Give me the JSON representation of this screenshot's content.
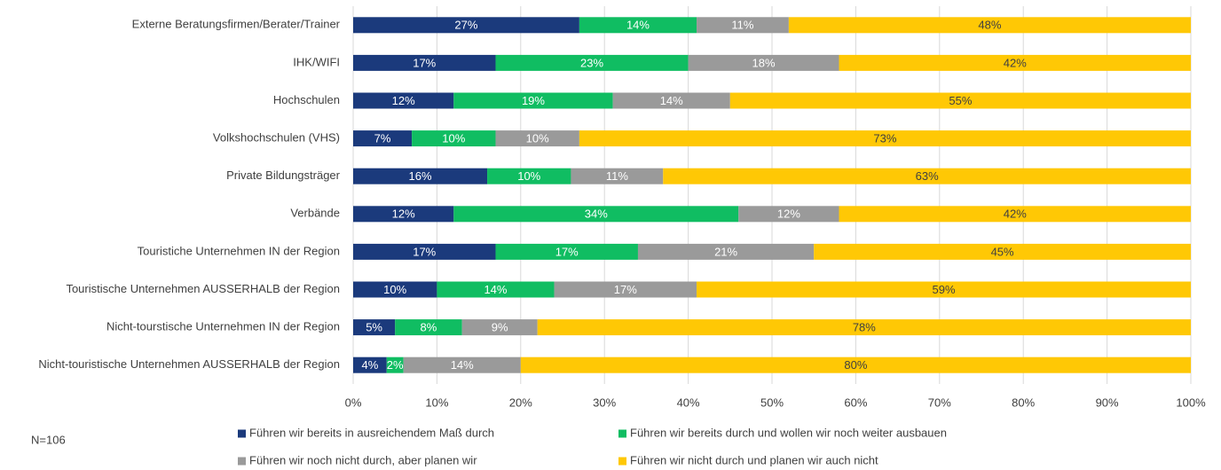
{
  "chart_data": {
    "type": "stacked-bar-horizontal",
    "categories": [
      "Externe Beratungsfirmen/Berater/Trainer",
      "IHK/WIFI",
      "Hochschulen",
      "Volkshochschulen (VHS)",
      "Private Bildungsträger",
      "Verbände",
      "Touristiche Unternehmen IN der Region",
      "Touristische Unternehmen AUSSERHALB der Region",
      "Nicht-tourstische Unternehmen IN der Region",
      "Nicht-touristische Unternehmen AUSSERHALB der Region"
    ],
    "series": [
      {
        "name": "Führen wir bereits in ausreichendem Maß durch",
        "color": "#1b3a7c",
        "label_color": "#ffffff",
        "values": [
          27,
          17,
          12,
          7,
          16,
          12,
          17,
          10,
          5,
          4
        ],
        "value_labels": [
          "27%",
          "17%",
          "12%",
          "7%",
          "16%",
          "12%",
          "17%",
          "10%",
          "5%",
          "4%"
        ]
      },
      {
        "name": "Führen wir bereits durch und wollen wir noch weiter ausbauen",
        "color": "#10bd62",
        "label_color": "#ffffff",
        "values": [
          14,
          23,
          19,
          10,
          10,
          34,
          17,
          14,
          8,
          2
        ],
        "value_labels": [
          "14%",
          "23%",
          "19%",
          "10%",
          "10%",
          "34%",
          "17%",
          "14%",
          "8%",
          "2%"
        ]
      },
      {
        "name": "Führen wir noch nicht durch, aber planen wir",
        "color": "#9a9a9a",
        "label_color": "#ffffff",
        "values": [
          11,
          18,
          14,
          10,
          11,
          12,
          21,
          17,
          9,
          14
        ],
        "value_labels": [
          "11%",
          "18%",
          "14%",
          "10%",
          "11%",
          "12%",
          "21%",
          "17%",
          "9%",
          "14%"
        ]
      },
      {
        "name": "Führen wir nicht durch und planen wir auch nicht",
        "color": "#ffc805",
        "label_color": "#404040",
        "values": [
          48,
          42,
          55,
          73,
          63,
          42,
          45,
          59,
          78,
          80
        ],
        "value_labels": [
          "48%",
          "42%",
          "55%",
          "73%",
          "63%",
          "42%",
          "45%",
          "59%",
          "78%",
          "80%"
        ]
      }
    ],
    "xlim": [
      0,
      100
    ],
    "xticks": [
      {
        "value": 0,
        "label": "0%"
      },
      {
        "value": 10,
        "label": "10%"
      },
      {
        "value": 20,
        "label": "20%"
      },
      {
        "value": 30,
        "label": "30%"
      },
      {
        "value": 40,
        "label": "40%"
      },
      {
        "value": 50,
        "label": "50%"
      },
      {
        "value": 60,
        "label": "60%"
      },
      {
        "value": 70,
        "label": "70%"
      },
      {
        "value": 80,
        "label": "80%"
      },
      {
        "value": 90,
        "label": "90%"
      },
      {
        "value": 100,
        "label": "100%"
      }
    ],
    "grid": true,
    "annotation": "N=106"
  }
}
